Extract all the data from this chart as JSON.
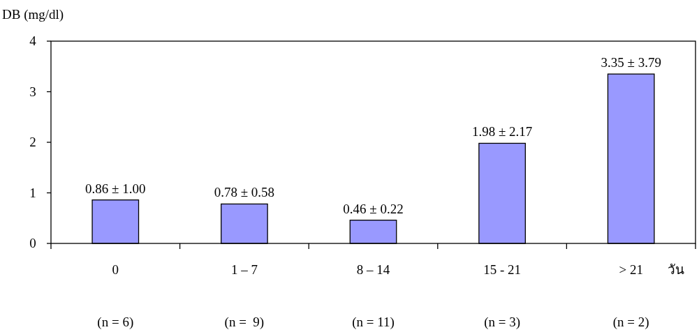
{
  "chart_data": {
    "type": "bar",
    "ylabel": "DB (mg/dl)",
    "xlabel": "วัน",
    "categories": [
      "0\n(n = 6)",
      "1 – 7\n(n =  9)",
      "8 – 14\n(n = 11)",
      "15 - 21\n(n = 3)",
      "> 21\n(n = 2)"
    ],
    "values": [
      0.86,
      0.78,
      0.46,
      1.98,
      3.35
    ],
    "value_labels": [
      "0.86 ± 1.00",
      "0.78 ± 0.58",
      "0.46 ± 0.22",
      "1.98 ± 2.17",
      "3.35 ± 3.79"
    ],
    "color": "#9999ff",
    "ylim": [
      0,
      4
    ],
    "yticks": [
      0,
      1,
      2,
      3,
      4
    ],
    "grid": false
  }
}
